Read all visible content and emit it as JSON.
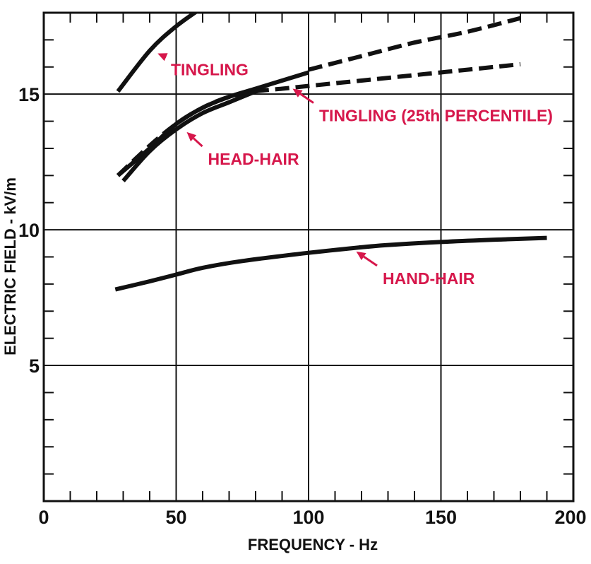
{
  "chart_data": {
    "type": "line",
    "title": "",
    "xlabel": "FREQUENCY - Hz",
    "ylabel": "ELECTRIC FIELD - kV/m",
    "xlim": [
      0,
      200
    ],
    "ylim": [
      0,
      18
    ],
    "x_ticks": [
      "0",
      "50",
      "100",
      "150",
      "200"
    ],
    "y_ticks": [
      "5",
      "10",
      "15"
    ],
    "grid": true,
    "legend": "none",
    "colors": {
      "curve": "#111111",
      "annotation": "#d6174b",
      "grid": "#111111",
      "background": "#ffffff"
    },
    "series": [
      {
        "style": "solid",
        "x": [
          28,
          40,
          50,
          60
        ],
        "y": [
          15.1,
          16.6,
          17.5,
          18.2
        ]
      },
      {
        "style": "solid",
        "x": [
          28,
          40,
          50,
          60,
          70,
          80,
          90,
          100
        ],
        "y": [
          12.0,
          13.0,
          13.9,
          14.5,
          14.9,
          15.2,
          15.5,
          15.8
        ]
      },
      {
        "style": "dashed",
        "x": [
          100,
          120,
          140,
          160,
          180
        ],
        "y": [
          15.9,
          16.4,
          16.9,
          17.3,
          17.8
        ]
      },
      {
        "style": "dashed",
        "x": [
          28,
          40,
          50,
          60,
          70,
          80,
          90,
          100,
          120,
          140,
          160,
          180
        ],
        "y": [
          12.0,
          13.1,
          13.9,
          14.5,
          14.9,
          15.1,
          15.2,
          15.3,
          15.5,
          15.7,
          15.9,
          16.1
        ]
      },
      {
        "style": "solid",
        "x": [
          30,
          40,
          50,
          60,
          70,
          80
        ],
        "y": [
          11.8,
          12.9,
          13.7,
          14.3,
          14.7,
          15.1
        ]
      },
      {
        "style": "solid",
        "x": [
          27,
          40,
          50,
          60,
          75,
          100,
          125,
          150,
          175,
          190
        ],
        "y": [
          7.8,
          8.1,
          8.35,
          8.6,
          8.85,
          9.15,
          9.4,
          9.55,
          9.65,
          9.7
        ]
      }
    ],
    "annotations": [
      {
        "text": "TINGLING",
        "point": [
          43,
          16.5
        ],
        "label_at": [
          48,
          15.7
        ]
      },
      {
        "text": "TINGLING (25th PERCENTILE)",
        "point": [
          94,
          15.2
        ],
        "label_at": [
          104,
          14.0
        ]
      },
      {
        "text": "HEAD-HAIR",
        "point": [
          54,
          13.6
        ],
        "label_at": [
          62,
          12.4
        ]
      },
      {
        "text": "HAND-HAIR",
        "point": [
          118,
          9.2
        ],
        "label_at": [
          128,
          8.0
        ]
      }
    ]
  }
}
